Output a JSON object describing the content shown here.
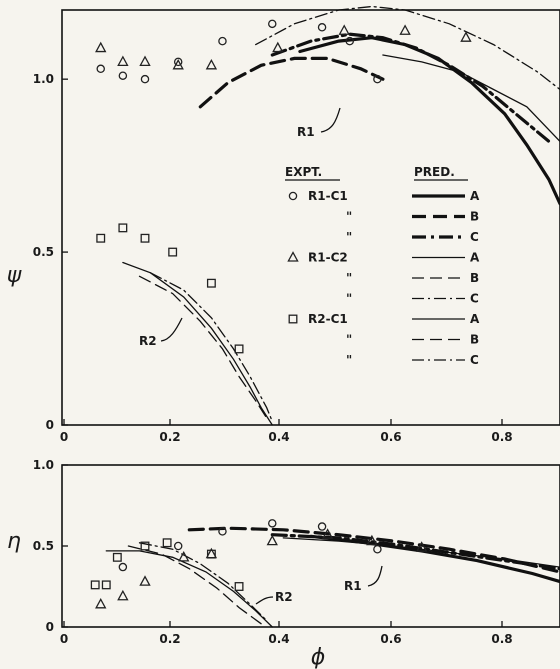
{
  "chart_data": [
    {
      "type": "scatter",
      "panel": "top",
      "ylabel": "ψ",
      "xlim": [
        0,
        0.9
      ],
      "ylim": [
        0,
        1.2
      ],
      "xticks": [
        "0",
        "0.2",
        "0.4",
        "0.6",
        "0.8"
      ],
      "yticks": [
        "0",
        "0.5",
        "1.0"
      ],
      "legend": {
        "position": "center-right",
        "header_expt": "EXPT.",
        "header_pred": "PRED.",
        "rows": [
          {
            "expt": "R1-C1",
            "pred": "A",
            "marker": "circle",
            "line": "thick-solid"
          },
          {
            "expt": "\"",
            "pred": "B",
            "line": "thick-dash"
          },
          {
            "expt": "\"",
            "pred": "C",
            "line": "thick-dashdot"
          },
          {
            "expt": "R1-C2",
            "pred": "A",
            "marker": "triangle",
            "line": "thin-solid"
          },
          {
            "expt": "\"",
            "pred": "B",
            "line": "thin-dash"
          },
          {
            "expt": "\"",
            "pred": "C",
            "line": "thin-dashdot"
          },
          {
            "expt": "R2-C1",
            "pred": "A",
            "marker": "square",
            "line": "thin-solid"
          },
          {
            "expt": "\"",
            "pred": "B",
            "line": "thin-dash"
          },
          {
            "expt": "\"",
            "pred": "C",
            "line": "thin-dashdot"
          }
        ]
      },
      "annotations": [
        "R1",
        "R2"
      ],
      "series": [
        {
          "expt": "R1-C1",
          "marker": "circle",
          "x": [
            0.07,
            0.11,
            0.15,
            0.21,
            0.29,
            0.38,
            0.47,
            0.52,
            0.57
          ],
          "y": [
            1.03,
            1.01,
            1.0,
            1.05,
            1.11,
            1.16,
            1.15,
            1.11,
            1.0
          ]
        },
        {
          "expt": "R1-C2",
          "marker": "triangle",
          "x": [
            0.07,
            0.11,
            0.15,
            0.21,
            0.27,
            0.39,
            0.51,
            0.62,
            0.73
          ],
          "y": [
            1.09,
            1.05,
            1.05,
            1.04,
            1.04,
            1.09,
            1.14,
            1.14,
            1.12
          ]
        },
        {
          "expt": "R2-C1",
          "marker": "square",
          "x": [
            0.07,
            0.11,
            0.15,
            0.2,
            0.27,
            0.32
          ],
          "y": [
            0.54,
            0.57,
            0.54,
            0.5,
            0.41,
            0.22
          ]
        }
      ],
      "curves": [
        {
          "ref": "R1",
          "pred": "A",
          "style": "thick-solid",
          "x": [
            0.43,
            0.5,
            0.56,
            0.62,
            0.68,
            0.74,
            0.8,
            0.84,
            0.88,
            0.9
          ],
          "y": [
            1.08,
            1.11,
            1.12,
            1.1,
            1.06,
            0.99,
            0.9,
            0.81,
            0.71,
            0.64
          ]
        },
        {
          "ref": "R1",
          "pred": "B",
          "style": "thick-dash",
          "x": [
            0.25,
            0.3,
            0.36,
            0.42,
            0.48,
            0.54,
            0.58
          ],
          "y": [
            0.92,
            0.99,
            1.04,
            1.06,
            1.06,
            1.03,
            1.0
          ]
        },
        {
          "ref": "R1",
          "pred": "C",
          "style": "thick-dashdot",
          "x": [
            0.38,
            0.45,
            0.52,
            0.58,
            0.64,
            0.7,
            0.76,
            0.82,
            0.88
          ],
          "y": [
            1.07,
            1.11,
            1.13,
            1.12,
            1.09,
            1.04,
            0.98,
            0.9,
            0.82
          ]
        },
        {
          "ref": "R1",
          "pred": "A",
          "style": "thin-solid",
          "x": [
            0.58,
            0.65,
            0.72,
            0.78,
            0.84,
            0.9
          ],
          "y": [
            1.07,
            1.05,
            1.02,
            0.97,
            0.92,
            0.82
          ]
        },
        {
          "ref": "R1",
          "pred": "C",
          "style": "thin-dashdot",
          "x": [
            0.35,
            0.42,
            0.5,
            0.56,
            0.62,
            0.7,
            0.78,
            0.86,
            0.9
          ],
          "y": [
            1.1,
            1.16,
            1.2,
            1.21,
            1.2,
            1.16,
            1.1,
            1.02,
            0.97
          ]
        },
        {
          "ref": "R2",
          "pred": "A",
          "style": "thin-solid",
          "x": [
            0.11,
            0.16,
            0.22,
            0.27,
            0.31,
            0.34,
            0.36,
            0.38
          ],
          "y": [
            0.47,
            0.44,
            0.37,
            0.28,
            0.19,
            0.11,
            0.05,
            0.0
          ]
        },
        {
          "ref": "R2",
          "pred": "B",
          "style": "thin-dash",
          "x": [
            0.14,
            0.2,
            0.25,
            0.29,
            0.32,
            0.35,
            0.37
          ],
          "y": [
            0.43,
            0.38,
            0.3,
            0.22,
            0.14,
            0.07,
            0.02
          ]
        },
        {
          "ref": "R2",
          "pred": "C",
          "style": "thin-dashdot",
          "x": [
            0.16,
            0.22,
            0.27,
            0.31,
            0.34,
            0.37,
            0.38
          ],
          "y": [
            0.44,
            0.39,
            0.31,
            0.22,
            0.14,
            0.05,
            0.01
          ]
        }
      ]
    },
    {
      "type": "scatter",
      "panel": "bottom",
      "xlabel": "ϕ",
      "ylabel": "η",
      "xlim": [
        0,
        0.9
      ],
      "ylim": [
        0,
        1.0
      ],
      "xticks": [
        "0",
        "0.2",
        "0.4",
        "0.6",
        "0.8"
      ],
      "yticks": [
        "0",
        "0.5",
        "1.0"
      ],
      "annotations": [
        "R1",
        "R2"
      ],
      "series": [
        {
          "expt": "R1-C1",
          "marker": "circle",
          "x": [
            0.11,
            0.21,
            0.29,
            0.38,
            0.47,
            0.57
          ],
          "y": [
            0.37,
            0.5,
            0.59,
            0.64,
            0.62,
            0.48
          ]
        },
        {
          "expt": "R1-C2",
          "marker": "triangle",
          "x": [
            0.07,
            0.11,
            0.15,
            0.22,
            0.27,
            0.38,
            0.48,
            0.56,
            0.65
          ],
          "y": [
            0.14,
            0.19,
            0.28,
            0.43,
            0.45,
            0.53,
            0.57,
            0.53,
            0.49
          ]
        },
        {
          "expt": "R2-C1",
          "marker": "square",
          "x": [
            0.06,
            0.08,
            0.1,
            0.15,
            0.19,
            0.27,
            0.32
          ],
          "y": [
            0.26,
            0.26,
            0.43,
            0.5,
            0.52,
            0.45,
            0.25
          ]
        }
      ],
      "curves": [
        {
          "ref": "R1",
          "pred": "A",
          "style": "thick-solid",
          "x": [
            0.45,
            0.55,
            0.65,
            0.75,
            0.85,
            0.9
          ],
          "y": [
            0.56,
            0.52,
            0.47,
            0.41,
            0.33,
            0.28
          ]
        },
        {
          "ref": "R1",
          "pred": "B",
          "style": "thick-dash",
          "x": [
            0.23,
            0.3,
            0.4,
            0.5,
            0.6,
            0.7,
            0.8,
            0.9
          ],
          "y": [
            0.6,
            0.61,
            0.6,
            0.57,
            0.53,
            0.48,
            0.42,
            0.34
          ]
        },
        {
          "ref": "R1",
          "pred": "C",
          "style": "thick-dashdot",
          "x": [
            0.38,
            0.5,
            0.6,
            0.7,
            0.8,
            0.9
          ],
          "y": [
            0.57,
            0.55,
            0.51,
            0.46,
            0.41,
            0.36
          ]
        },
        {
          "ref": "R1",
          "pred": "A",
          "style": "thin-solid",
          "x": [
            0.4,
            0.5,
            0.6,
            0.7,
            0.8,
            0.9
          ],
          "y": [
            0.55,
            0.53,
            0.5,
            0.46,
            0.42,
            0.37
          ]
        },
        {
          "ref": "R2",
          "pred": "A",
          "style": "thin-solid",
          "x": [
            0.08,
            0.14,
            0.2,
            0.26,
            0.31,
            0.35,
            0.38
          ],
          "y": [
            0.47,
            0.47,
            0.43,
            0.34,
            0.22,
            0.1,
            0.0
          ]
        },
        {
          "ref": "R2",
          "pred": "B",
          "style": "thin-dash",
          "x": [
            0.12,
            0.18,
            0.23,
            0.28,
            0.32,
            0.36
          ],
          "y": [
            0.5,
            0.45,
            0.36,
            0.24,
            0.12,
            0.02
          ]
        },
        {
          "ref": "R2",
          "pred": "C",
          "style": "thin-dashdot",
          "x": [
            0.14,
            0.2,
            0.25,
            0.3,
            0.34,
            0.37
          ],
          "y": [
            0.52,
            0.48,
            0.39,
            0.27,
            0.14,
            0.04
          ]
        }
      ]
    }
  ]
}
